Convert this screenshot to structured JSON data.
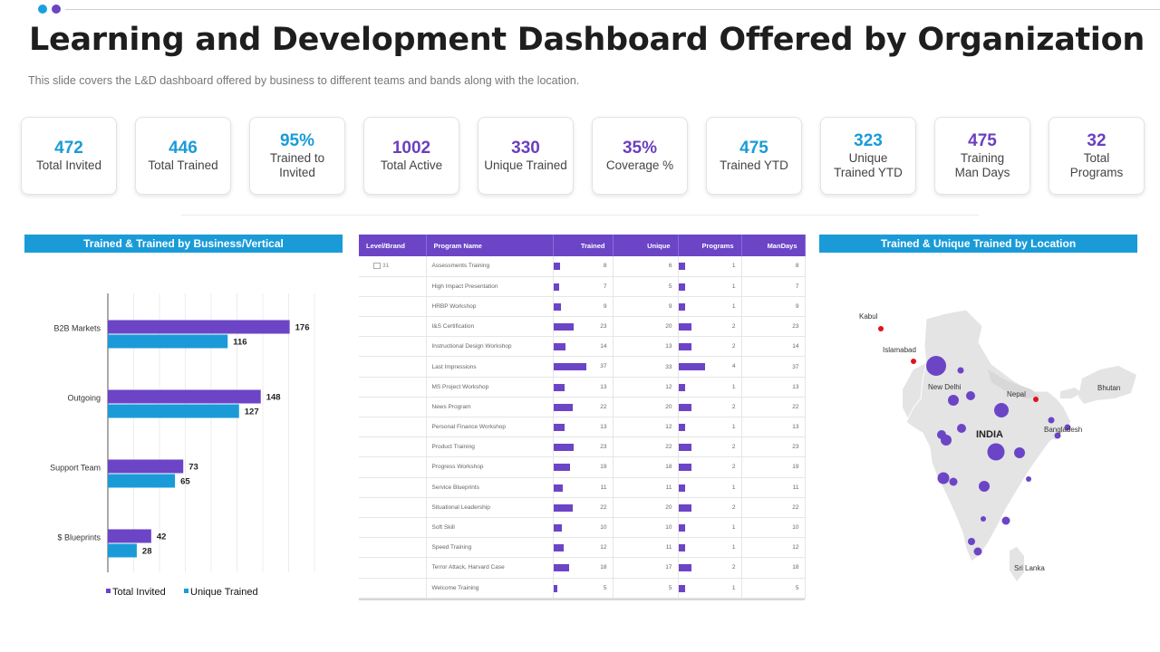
{
  "header": {
    "title": "Learning and Development Dashboard Offered by Organization",
    "subtitle": "This slide covers the L&D dashboard offered  by business to different  teams and bands along with the location."
  },
  "kpis": [
    {
      "value": "472",
      "label": "Total Invited",
      "color": "#1a9bd8"
    },
    {
      "value": "446",
      "label": "Total Trained",
      "color": "#1a9bd8"
    },
    {
      "value": "95%",
      "label": "Trained  to\nInvited",
      "color": "#1a9bd8"
    },
    {
      "value": "1002",
      "label": "Total Active",
      "color": "#6b3fbf"
    },
    {
      "value": "330",
      "label": "Unique Trained",
      "color": "#6b3fbf"
    },
    {
      "value": "35%",
      "label": "Coverage  %",
      "color": "#6b3fbf"
    },
    {
      "value": "475",
      "label": "Trained  YTD",
      "color": "#1a9bd8"
    },
    {
      "value": "323",
      "label": "Unique\nTrained  YTD",
      "color": "#1a9bd8"
    },
    {
      "value": "475",
      "label": "Training\nMan Days",
      "color": "#6b3fbf"
    },
    {
      "value": "32",
      "label": "Total\nPrograms",
      "color": "#6b3fbf"
    }
  ],
  "left_panel": {
    "title": "Trained & Trained by Business/Vertical"
  },
  "right_panel": {
    "title": "Trained & Unique Trained by Location"
  },
  "chart_data": {
    "type": "bar",
    "orientation": "horizontal",
    "categories": [
      "B2B Markets",
      "Outgoing",
      "Support Team",
      "$ Blueprints"
    ],
    "series": [
      {
        "name": "Total Invited",
        "color": "#6b45c6",
        "values": [
          176,
          148,
          73,
          42
        ]
      },
      {
        "name": "Unique Trained",
        "color": "#1a9bd8",
        "values": [
          116,
          127,
          65,
          28
        ]
      }
    ],
    "title": "Trained & Trained by Business/Vertical",
    "xlim": [
      0,
      200
    ],
    "legend": "bottom"
  },
  "table": {
    "headers": {
      "level": "Level/Brand",
      "program": "Program Name",
      "trained": "Trained",
      "unique": "Unique",
      "programs": "Programs",
      "mandays": "ManDays"
    },
    "level_value": "31",
    "bar_color": "#6b45c6",
    "trained_max": 37,
    "programs_max": 4,
    "rows": [
      {
        "name": "Assessments Training",
        "trained": 8,
        "unique": 6,
        "programs": 1,
        "mandays": 8
      },
      {
        "name": "High Impact Presentation",
        "trained": 7,
        "unique": 5,
        "programs": 1,
        "mandays": 7
      },
      {
        "name": "HRBP Workshop",
        "trained": 9,
        "unique": 9,
        "programs": 1,
        "mandays": 9
      },
      {
        "name": "I&S Certification",
        "trained": 23,
        "unique": 20,
        "programs": 2,
        "mandays": 23
      },
      {
        "name": "Instructional Design Workshop",
        "trained": 14,
        "unique": 13,
        "programs": 2,
        "mandays": 14
      },
      {
        "name": "Last Impressions",
        "trained": 37,
        "unique": 33,
        "programs": 4,
        "mandays": 37
      },
      {
        "name": "MS Project Workshop",
        "trained": 13,
        "unique": 12,
        "programs": 1,
        "mandays": 13
      },
      {
        "name": "News Program",
        "trained": 22,
        "unique": 20,
        "programs": 2,
        "mandays": 22
      },
      {
        "name": "Personal Finance Workshop",
        "trained": 13,
        "unique": 12,
        "programs": 1,
        "mandays": 13
      },
      {
        "name": "Product Training",
        "trained": 23,
        "unique": 22,
        "programs": 2,
        "mandays": 23
      },
      {
        "name": "Progress Workshop",
        "trained": 19,
        "unique": 18,
        "programs": 2,
        "mandays": 19
      },
      {
        "name": "Service Blueprints",
        "trained": 11,
        "unique": 11,
        "programs": 1,
        "mandays": 11
      },
      {
        "name": "Situational Leadership",
        "trained": 22,
        "unique": 20,
        "programs": 2,
        "mandays": 22
      },
      {
        "name": "Soft Skill",
        "trained": 10,
        "unique": 10,
        "programs": 1,
        "mandays": 10
      },
      {
        "name": "Speed Training",
        "trained": 12,
        "unique": 11,
        "programs": 1,
        "mandays": 12
      },
      {
        "name": "Terror Attack, Harvard Case",
        "trained": 18,
        "unique": 17,
        "programs": 2,
        "mandays": 18
      },
      {
        "name": "Welcome Training",
        "trained": 5,
        "unique": 5,
        "programs": 1,
        "mandays": 5
      }
    ]
  },
  "map": {
    "labels": {
      "kabul": "Kabul",
      "islamabad": "Islamabad",
      "new_delhi": "New Delhi",
      "nepal": "Nepal",
      "bhutan": "Bhutan",
      "india": "INDIA",
      "bangladesh": "Bangladesh",
      "sri_lanka": "Sri Lanka"
    },
    "marker_color": "#6b45c6",
    "capital_color": "#e0121b",
    "land_color": "#e4e4e4"
  }
}
